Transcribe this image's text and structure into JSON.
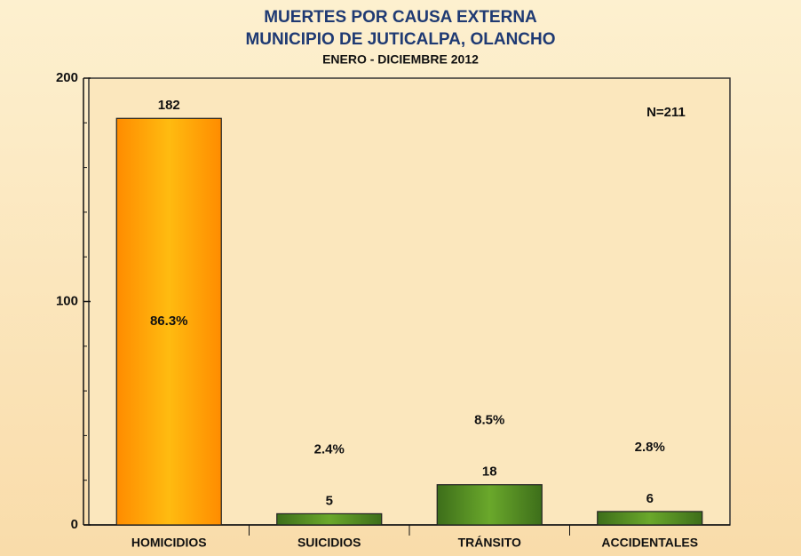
{
  "chart_data": {
    "type": "bar",
    "title": "MUERTES POR CAUSA EXTERNA",
    "subtitle": "MUNICIPIO DE JUTICALPA, OLANCHO",
    "period": "ENERO - DICIEMBRE 2012",
    "annotation": "N=211",
    "categories": [
      "HOMICIDIOS",
      "SUICIDIOS",
      "TRÁNSITO",
      "ACCIDENTALES"
    ],
    "values": [
      182,
      5,
      18,
      6
    ],
    "share_labels": [
      "86.3%",
      "2.4%",
      "8.5%",
      "2.8%"
    ],
    "colors": [
      "#ff9f00",
      "#4f8a23",
      "#4f8a23",
      "#4f8a23"
    ],
    "ylim": [
      0,
      200
    ],
    "yticks": [
      0,
      100,
      200
    ],
    "minor_yticks": [
      20,
      40,
      60,
      80,
      120,
      140,
      160,
      180
    ],
    "grid": false
  }
}
